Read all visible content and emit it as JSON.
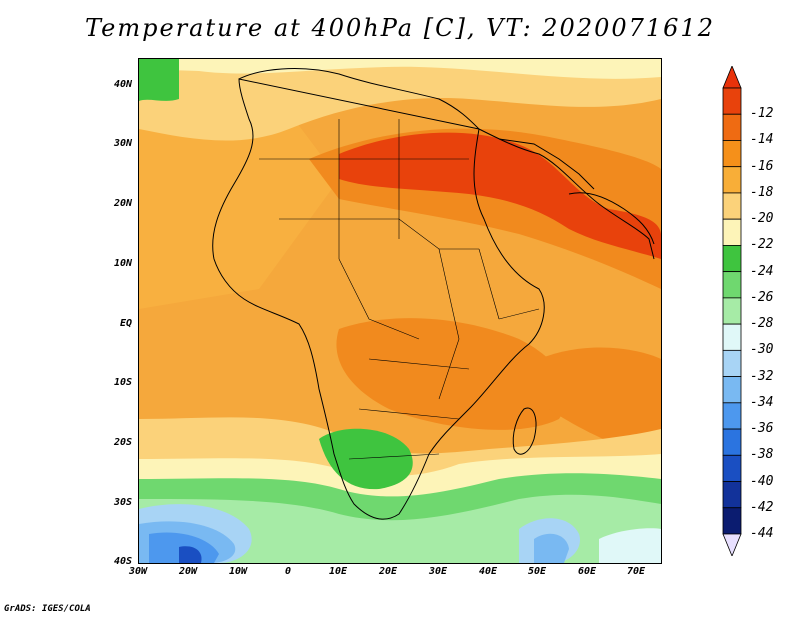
{
  "title": "Temperature at 400hPa [C], VT: 2020071612",
  "credit": "GrADS: IGES/COLA",
  "y_axis_labels": [
    "40N",
    "30N",
    "20N",
    "10N",
    "EQ",
    "10S",
    "20S",
    "30S",
    "40S"
  ],
  "x_axis_labels": [
    "30W",
    "20W",
    "10W",
    "0",
    "10E",
    "20E",
    "30E",
    "40E",
    "50E",
    "60E",
    "70E"
  ],
  "colorbar": {
    "labels": [
      "-12",
      "-14",
      "-16",
      "-18",
      "-20",
      "-22",
      "-24",
      "-26",
      "-28",
      "-30",
      "-32",
      "-34",
      "-36",
      "-38",
      "-40",
      "-42",
      "-44"
    ],
    "colors": [
      "#e8420c",
      "#ef6b12",
      "#f5901a",
      "#f8ae38",
      "#fbd27a",
      "#fdf4b8",
      "#3fc43f",
      "#6fd86f",
      "#a6eba6",
      "#e0f8f8",
      "#a8d4f5",
      "#79b9f2",
      "#4d98ee",
      "#2b74e0",
      "#1a4fc2",
      "#12329a",
      "#0b1c70"
    ],
    "over_color": "#e8320a",
    "under_color": "#e8e0ff"
  },
  "map": {
    "variable": "Temperature at 400hPa",
    "units": "C",
    "valid_time": "2020071612",
    "lon_range": [
      -30,
      75
    ],
    "lat_range": [
      -40,
      45
    ]
  }
}
